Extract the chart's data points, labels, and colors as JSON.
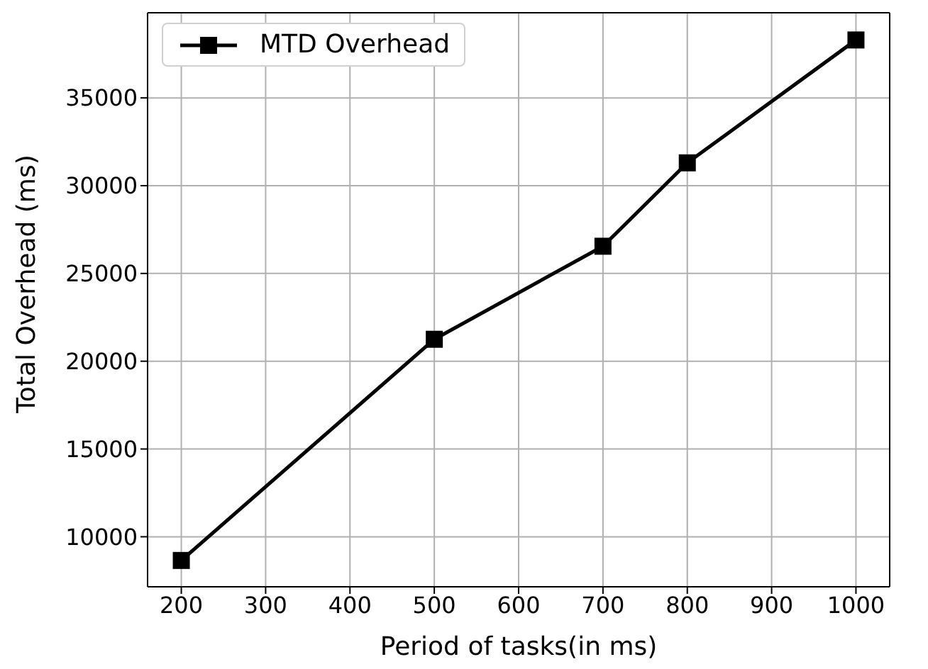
{
  "chart_data": {
    "type": "line",
    "xlabel": "Period of tasks(in ms)",
    "ylabel": "Total Overhead (ms)",
    "x": [
      200,
      500,
      700,
      800,
      1000
    ],
    "series": [
      {
        "name": "MTD Overhead",
        "color": "#000000",
        "values": [
          8650,
          21250,
          26550,
          31300,
          38300
        ]
      }
    ],
    "xlim": [
      160,
      1040
    ],
    "xticks": [
      200,
      300,
      400,
      500,
      600,
      700,
      800,
      900,
      1000
    ],
    "ylim": [
      7150,
      39850
    ],
    "yticks": [
      10000,
      15000,
      20000,
      25000,
      30000,
      35000
    ],
    "grid": true,
    "legend": "top left",
    "marker": "square",
    "line_style": "solid"
  }
}
